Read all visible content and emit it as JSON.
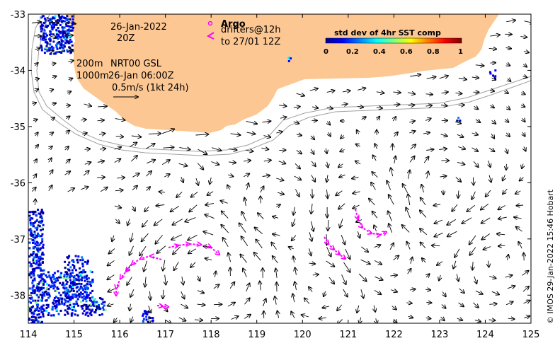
{
  "map": {
    "lon_range": [
      114,
      125
    ],
    "lat_range": [
      -38.5,
      -33
    ],
    "x_ticks": [
      114,
      115,
      116,
      117,
      118,
      119,
      120,
      121,
      122,
      123,
      124,
      125
    ],
    "y_ticks": [
      -38,
      -37,
      -36,
      -35,
      -34,
      -33
    ],
    "land_color": "#fcc793",
    "drifter_color": "#ff00ff",
    "contour_color": "#a0a0a0"
  },
  "labels": {
    "date": "26-Jan-2022",
    "time": "20Z",
    "argo": "Argo",
    "drifters": "drifters@12h",
    "drifters_to": "to 27/01 12Z",
    "depth_200": "200m",
    "depth_1000": "1000m",
    "product": "NRT00 GSL",
    "product_time": "26-Jan 06:00Z",
    "scale": "0.5m/s (1kt 24h)",
    "credit": "© IMOS 29-Jan-2022 15:46 Hobart"
  },
  "colorbar": {
    "title": "std dev of 4hr SST comp",
    "ticks": [
      "0",
      "0.2",
      "0.4",
      "0.6",
      "0.8",
      "1"
    ]
  }
}
